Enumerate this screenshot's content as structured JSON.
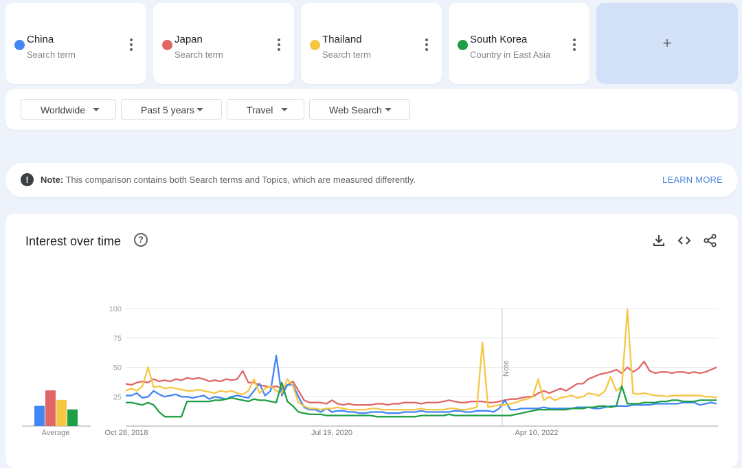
{
  "terms": [
    {
      "name": "China",
      "type": "Search term",
      "color": "#4285f4"
    },
    {
      "name": "Japan",
      "type": "Search term",
      "color": "#e06666"
    },
    {
      "name": "Thailand",
      "type": "Search term",
      "color": "#f6c644"
    },
    {
      "name": "South Korea",
      "type": "Country in East Asia",
      "color": "#1e9e45"
    }
  ],
  "add_label": "+",
  "filters": {
    "region": "Worldwide",
    "time": "Past 5 years",
    "category": "Travel",
    "search_type": "Web Search"
  },
  "note": {
    "prefix": "Note:",
    "text": "This comparison contains both Search terms and Topics, which are measured differently.",
    "link": "LEARN MORE"
  },
  "chart_section": {
    "title": "Interest over time",
    "average_label": "Average",
    "annotation": "Note"
  },
  "chart_data": {
    "type": "line",
    "x_tick_labels": [
      "Oct 28, 2018",
      "Jul 19, 2020",
      "Apr 10, 2022"
    ],
    "y_ticks": [
      25,
      50,
      75,
      100
    ],
    "ylim": [
      0,
      100
    ],
    "grid": true,
    "averages": {
      "China": 17,
      "Japan": 30,
      "Thailand": 22,
      "South Korea": 14
    },
    "series": [
      {
        "name": "China",
        "color": "#4285f4",
        "values": [
          26,
          26,
          28,
          24,
          25,
          30,
          27,
          25,
          26,
          27,
          25,
          25,
          24,
          25,
          26,
          23,
          25,
          24,
          23,
          25,
          26,
          25,
          24,
          30,
          36,
          26,
          30,
          60,
          26,
          35,
          35,
          25,
          16,
          14,
          14,
          12,
          15,
          12,
          13,
          13,
          12,
          12,
          11,
          11,
          12,
          12,
          12,
          11,
          11,
          11,
          12,
          12,
          12,
          13,
          12,
          12,
          12,
          12,
          12,
          13,
          13,
          12,
          12,
          13,
          13,
          13,
          12,
          15,
          22,
          14,
          14,
          15,
          15,
          15,
          15,
          16,
          15,
          15,
          15,
          15,
          15,
          16,
          16,
          16,
          15,
          15,
          16,
          17,
          17,
          17,
          17,
          18,
          18,
          18,
          18,
          19,
          19,
          19,
          19,
          19,
          20,
          20,
          20,
          18,
          19,
          20,
          19
        ]
      },
      {
        "name": "Japan",
        "color": "#e06666",
        "values": [
          36,
          35,
          37,
          38,
          37,
          40,
          38,
          39,
          38,
          40,
          39,
          41,
          40,
          41,
          40,
          38,
          39,
          38,
          40,
          39,
          40,
          47,
          37,
          37,
          35,
          34,
          33,
          34,
          32,
          35,
          38,
          30,
          22,
          20,
          20,
          20,
          19,
          22,
          19,
          18,
          19,
          18,
          18,
          18,
          18,
          19,
          19,
          18,
          19,
          19,
          20,
          20,
          20,
          19,
          20,
          20,
          20,
          21,
          22,
          21,
          20,
          20,
          21,
          21,
          21,
          20,
          20,
          21,
          22,
          23,
          23,
          24,
          25,
          25,
          28,
          30,
          28,
          30,
          32,
          30,
          33,
          36,
          36,
          40,
          42,
          44,
          45,
          46,
          48,
          45,
          50,
          46,
          49,
          55,
          47,
          45,
          46,
          46,
          45,
          46,
          46,
          45,
          46,
          45,
          46,
          48,
          50
        ]
      },
      {
        "name": "Thailand",
        "color": "#f6c644",
        "values": [
          30,
          32,
          30,
          34,
          50,
          33,
          34,
          32,
          33,
          32,
          31,
          30,
          30,
          31,
          30,
          29,
          28,
          30,
          29,
          30,
          28,
          27,
          30,
          40,
          28,
          32,
          34,
          30,
          28,
          40,
          34,
          20,
          17,
          15,
          15,
          14,
          15,
          15,
          16,
          15,
          14,
          14,
          14,
          14,
          15,
          15,
          14,
          14,
          14,
          14,
          14,
          14,
          14,
          15,
          14,
          14,
          14,
          14,
          15,
          15,
          14,
          14,
          15,
          16,
          71,
          16,
          17,
          18,
          18,
          19,
          20,
          22,
          23,
          25,
          40,
          22,
          25,
          22,
          24,
          25,
          26,
          24,
          25,
          28,
          27,
          26,
          30,
          42,
          30,
          34,
          99,
          28,
          27,
          28,
          27,
          26,
          26,
          25,
          26,
          26,
          26,
          26,
          26,
          26,
          25,
          25,
          24
        ]
      },
      {
        "name": "South Korea",
        "color": "#1e9e45",
        "values": [
          20,
          20,
          19,
          18,
          20,
          18,
          12,
          8,
          8,
          8,
          8,
          21,
          21,
          21,
          21,
          21,
          22,
          22,
          23,
          24,
          23,
          22,
          21,
          23,
          22,
          22,
          21,
          20,
          37,
          21,
          17,
          12,
          11,
          10,
          10,
          10,
          9,
          9,
          9,
          9,
          9,
          9,
          9,
          9,
          9,
          8,
          8,
          8,
          8,
          8,
          8,
          8,
          8,
          9,
          9,
          9,
          9,
          9,
          10,
          9,
          9,
          9,
          9,
          9,
          9,
          9,
          9,
          9,
          9,
          9,
          10,
          11,
          12,
          13,
          14,
          14,
          14,
          14,
          14,
          14,
          15,
          15,
          15,
          16,
          16,
          17,
          17,
          16,
          17,
          34,
          19,
          19,
          19,
          20,
          20,
          20,
          21,
          21,
          22,
          22,
          21,
          21,
          21,
          22,
          22,
          22,
          22
        ]
      }
    ]
  }
}
